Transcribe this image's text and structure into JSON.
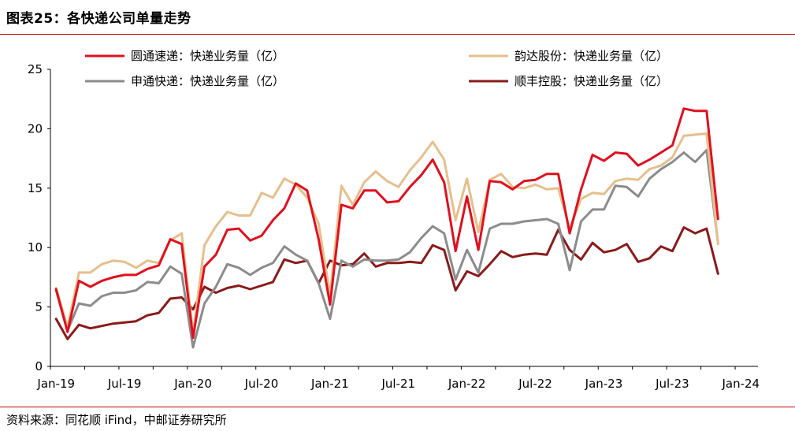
{
  "header": {
    "title": "图表25：各快递公司单量走势"
  },
  "footer": {
    "source": "资料来源：同花顺 iFind，中邮证券研究所"
  },
  "chart_data": {
    "type": "line",
    "title": "各快递公司单量走势",
    "xlabel": "",
    "ylabel": "",
    "ylim": [
      0,
      25
    ],
    "yticks": [
      "0",
      "5",
      "10",
      "15",
      "20",
      "25"
    ],
    "xtick_labels": [
      "Jan-19",
      "Jul-19",
      "Jan-20",
      "Jul-20",
      "Jan-21",
      "Jul-21",
      "Jan-22",
      "Jul-22",
      "Jan-23",
      "Jul-23",
      "Jan-24"
    ],
    "xtick_months": [
      0,
      6,
      12,
      18,
      24,
      30,
      36,
      42,
      48,
      54,
      60
    ],
    "x_count": 62,
    "series": [
      {
        "name": "圆通速递：快递业务量（亿）",
        "color": "#e0101e",
        "values": [
          6.5,
          2.9,
          7.2,
          6.7,
          7.2,
          7.5,
          7.7,
          7.7,
          8.2,
          8.5,
          10.7,
          10.3,
          2.4,
          8.4,
          9.4,
          11.5,
          11.6,
          10.6,
          11.0,
          12.3,
          13.3,
          15.4,
          14.8,
          10.7,
          5.2,
          13.6,
          13.3,
          14.8,
          14.8,
          13.8,
          13.9,
          15.1,
          16.1,
          17.4,
          15.5,
          9.7,
          14.3,
          9.8,
          15.6,
          15.5,
          14.9,
          15.6,
          15.7,
          16.2,
          16.2,
          11.2,
          14.9,
          17.8,
          17.3,
          18.0,
          17.9,
          16.9,
          17.4,
          18.0,
          18.6,
          21.7,
          21.5,
          21.5,
          12.4
        ]
      },
      {
        "name": "韵达股份：快递业务量（亿）",
        "color": "#e6bf8c",
        "values": [
          6.6,
          3.3,
          7.9,
          7.9,
          8.6,
          8.9,
          8.8,
          8.3,
          8.9,
          8.7,
          10.6,
          11.2,
          2.8,
          10.2,
          11.8,
          13.0,
          12.7,
          12.7,
          14.6,
          14.2,
          15.8,
          15.3,
          14.2,
          12.0,
          6.0,
          15.2,
          13.6,
          15.5,
          16.4,
          15.6,
          15.1,
          16.5,
          17.6,
          18.9,
          17.4,
          12.3,
          15.8,
          11.3,
          15.7,
          16.2,
          15.1,
          15.0,
          15.3,
          14.9,
          15.0,
          11.6,
          14.1,
          14.6,
          14.5,
          15.6,
          15.8,
          15.7,
          16.6,
          16.9,
          17.6,
          19.4,
          19.5,
          19.6,
          10.3
        ]
      },
      {
        "name": "申通快递：快递业务量（亿）",
        "color": "#8c8c8c",
        "values": [
          6.4,
          3.0,
          5.3,
          5.1,
          5.9,
          6.2,
          6.2,
          6.4,
          7.1,
          7.0,
          8.4,
          7.8,
          1.6,
          5.3,
          6.7,
          8.6,
          8.3,
          7.7,
          8.3,
          8.7,
          10.1,
          9.4,
          8.9,
          7.0,
          4.0,
          8.9,
          8.4,
          9.0,
          8.9,
          8.9,
          9.0,
          9.6,
          10.8,
          11.8,
          11.2,
          7.3,
          9.8,
          7.9,
          11.6,
          12.0,
          12.0,
          12.2,
          12.3,
          12.4,
          12.0,
          8.1,
          12.2,
          13.2,
          13.2,
          15.2,
          15.1,
          14.3,
          15.8,
          16.6,
          17.2,
          18.0,
          17.2,
          18.2,
          10.4
        ]
      },
      {
        "name": "顺丰控股：快递业务量（亿）",
        "color": "#8b1a1a",
        "values": [
          4.0,
          2.3,
          3.5,
          3.2,
          3.4,
          3.6,
          3.7,
          3.8,
          4.3,
          4.5,
          5.7,
          5.8,
          4.8,
          6.7,
          6.2,
          6.6,
          6.8,
          6.5,
          6.8,
          7.1,
          9.0,
          8.7,
          8.9,
          7.0,
          8.9,
          8.5,
          8.6,
          9.5,
          8.4,
          8.7,
          8.7,
          8.8,
          8.7,
          10.2,
          9.8,
          6.4,
          8.0,
          7.6,
          8.6,
          9.7,
          9.2,
          9.4,
          9.5,
          9.4,
          11.5,
          9.8,
          9.0,
          10.4,
          9.6,
          9.8,
          10.3,
          8.8,
          9.1,
          10.1,
          9.7,
          11.7,
          11.2,
          11.6,
          7.8
        ]
      }
    ],
    "legend": {
      "placement": "top",
      "items": [
        "圆通速递：快递业务量（亿）",
        "韵达股份：快递业务量（亿）",
        "申通快递：快递业务量（亿）",
        "顺丰控股：快递业务量（亿）"
      ]
    }
  }
}
